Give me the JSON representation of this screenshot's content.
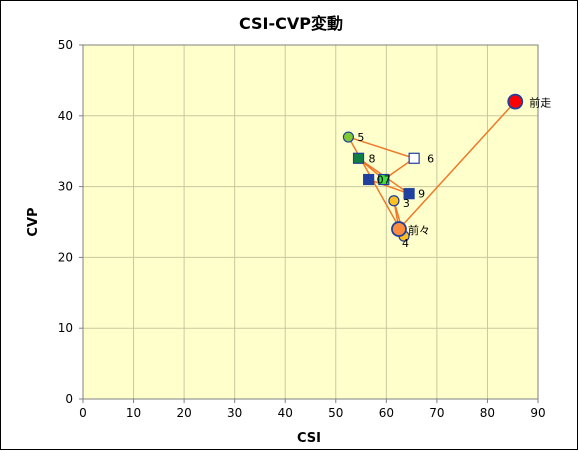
{
  "chart_data": {
    "type": "scatter",
    "title": "CSI-CVP変動",
    "xlabel": "CSI",
    "ylabel": "CVP",
    "xlim": [
      0,
      90
    ],
    "ylim": [
      0,
      50
    ],
    "x_ticks": [
      "0",
      "10",
      "20",
      "30",
      "40",
      "50",
      "60",
      "70",
      "80",
      "90"
    ],
    "y_ticks": [
      "0",
      "10",
      "20",
      "30",
      "40",
      "50"
    ],
    "grid": true,
    "colors": {
      "plot_bg": "#FFFFCC",
      "grid": "#C8C8A0",
      "line": "#F07828",
      "marker_outline": "#2040A0"
    },
    "points": [
      {
        "label": "前走",
        "x": 85.5,
        "y": 42,
        "marker": "circle-large",
        "fill": "#FF0000"
      },
      {
        "label": "前々",
        "x": 62.5,
        "y": 24,
        "marker": "circle-large",
        "fill": "#FF8C3C"
      },
      {
        "label": "3",
        "x": 61.5,
        "y": 28,
        "marker": "circle",
        "fill": "#FFC020"
      },
      {
        "label": "4",
        "x": 63.5,
        "y": 23,
        "marker": "circle",
        "fill": "#FFC020"
      },
      {
        "label": "5",
        "x": 52.5,
        "y": 37,
        "marker": "circle",
        "fill": "#80C830"
      },
      {
        "label": "6",
        "x": 65.5,
        "y": 34,
        "marker": "square",
        "fill": "#FFFFFF"
      },
      {
        "label": "7",
        "x": 59.5,
        "y": 31,
        "marker": "square",
        "fill": "#40E040"
      },
      {
        "label": "8",
        "x": 54.5,
        "y": 34,
        "marker": "square",
        "fill": "#108040"
      },
      {
        "label": "9",
        "x": 64.5,
        "y": 29,
        "marker": "square",
        "fill": "#2040A0"
      },
      {
        "label": "0",
        "x": 56.5,
        "y": 31,
        "marker": "square",
        "fill": "#2040A0"
      }
    ],
    "path_order": [
      "前走",
      "前々",
      "3",
      "4",
      "5",
      "6",
      "7",
      "8",
      "9",
      "0"
    ]
  }
}
